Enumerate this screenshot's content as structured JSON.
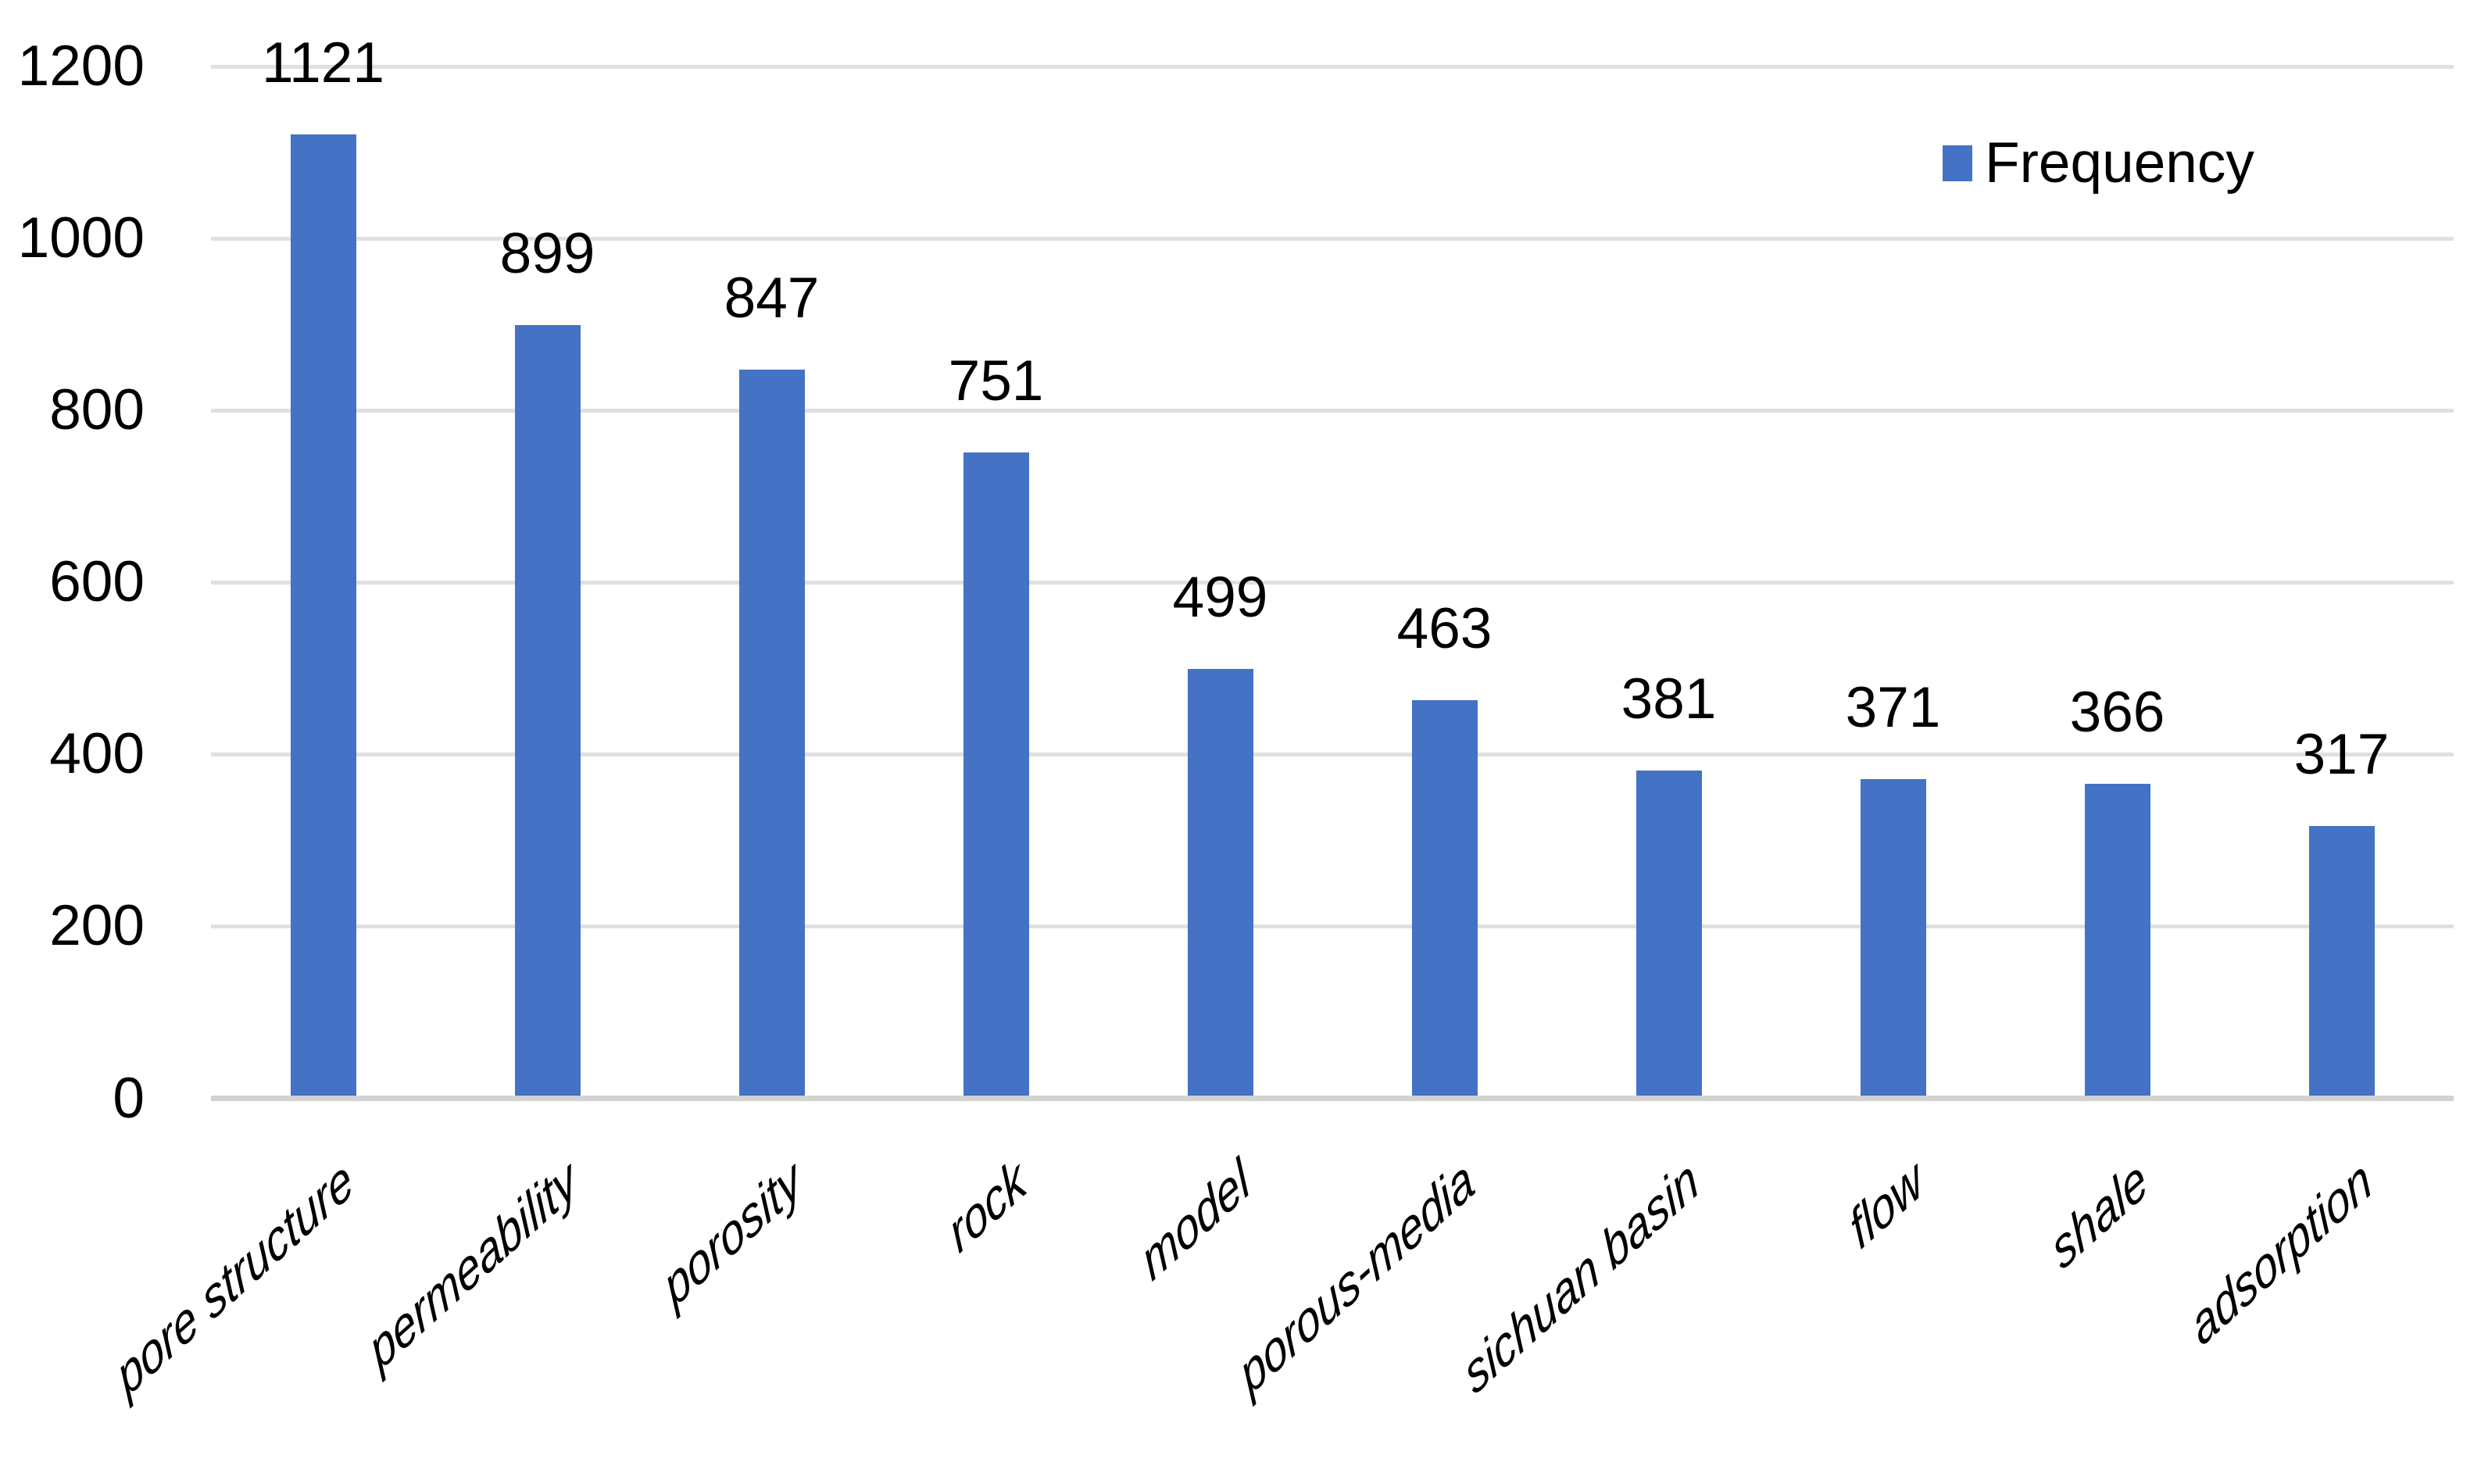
{
  "chart_data": {
    "type": "bar",
    "title": "",
    "xlabel": "",
    "ylabel": "",
    "categories": [
      "pore structure",
      "permeability",
      "porosity",
      "rock",
      "model",
      "porous-media",
      "sichuan basin",
      "flow",
      "shale",
      "adsorption"
    ],
    "series": [
      {
        "name": "Frequency",
        "values": [
          1121,
          899,
          847,
          751,
          499,
          463,
          381,
          371,
          366,
          317
        ]
      }
    ],
    "data_labels": [
      "1121",
      "899",
      "847",
      "751",
      "499",
      "463",
      "381",
      "371",
      "366",
      "317"
    ],
    "ylim": [
      0,
      1200
    ],
    "yticks": [
      0,
      200,
      400,
      600,
      800,
      1000,
      1200
    ],
    "grid": true,
    "legend": {
      "label": "Frequency",
      "position": "top-right"
    },
    "colors": {
      "bar": "#4472C4",
      "gridline": "#E0E0E0",
      "axis_line": "#D2D2D2",
      "text": "#000000"
    }
  }
}
